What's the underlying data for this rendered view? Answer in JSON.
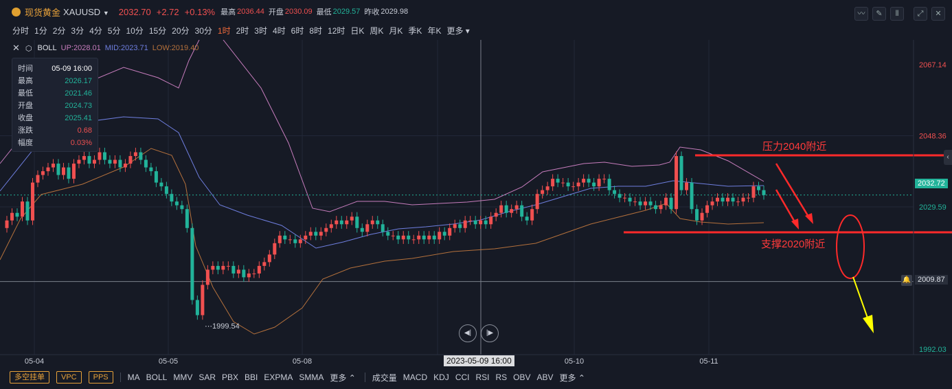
{
  "header": {
    "title": "现货黄金",
    "symbol": "XAUUSD",
    "price": "2032.70",
    "change": "+2.72",
    "change_pct": "+0.13%",
    "high_label": "最高",
    "high": "2036.44",
    "open_label": "开盘",
    "open": "2030.09",
    "low_label": "最低",
    "low": "2029.57",
    "prev_label": "昨收",
    "prev": "2029.98"
  },
  "periods": [
    "分时",
    "1分",
    "2分",
    "3分",
    "4分",
    "5分",
    "10分",
    "15分",
    "20分",
    "30分",
    "1时",
    "2时",
    "3时",
    "4时",
    "6时",
    "8时",
    "12时",
    "日K",
    "周K",
    "月K",
    "季K",
    "年K",
    "更多"
  ],
  "active_period": "1时",
  "indicator": {
    "name": "BOLL",
    "up": "UP:2028.01",
    "mid": "MID:2023.71",
    "low": "LOW:2019.40"
  },
  "tooltip": {
    "time_label": "时间",
    "time": "05-09 16:00",
    "high_label": "最高",
    "high": "2026.17",
    "low_label": "最低",
    "low": "2021.46",
    "open_label": "开盘",
    "open": "2024.73",
    "close_label": "收盘",
    "close": "2025.41",
    "chg_label": "涨跌",
    "chg": "0.68",
    "amp_label": "幅度",
    "amp": "0.03%"
  },
  "y_axis": [
    "2067.14",
    "2048.36",
    "2029.59",
    "2009.87",
    "1992.03"
  ],
  "current_price_tag": "2032.72",
  "crosshair_price_tag": "2009.87",
  "x_axis": [
    "05-04",
    "05-05",
    "05-08",
    "05-09",
    "05-10",
    "05-11"
  ],
  "crosshair_time": "2023-05-09 16:00",
  "min_label": "1999.54",
  "annotations": {
    "resistance": "压力2040附近",
    "support": "支撑2020附近"
  },
  "bottom": {
    "pills": [
      "多空挂单",
      "VPC",
      "PPS"
    ],
    "main_indicators": [
      "MA",
      "BOLL",
      "MMV",
      "SAR",
      "PBX",
      "BBI",
      "EXPMA",
      "SMMA",
      "更多"
    ],
    "sub_indicators": [
      "成交量",
      "MACD",
      "KDJ",
      "CCI",
      "RSI",
      "RS",
      "OBV",
      "ABV",
      "更多"
    ]
  },
  "colors": {
    "bg": "#161a25",
    "up": "#f05050",
    "down": "#22b39a",
    "boll_up": "#c77dbd",
    "boll_mid": "#6f7fe0",
    "boll_low": "#b5713c",
    "annotation": "#ff2a2a",
    "arrow_yellow": "#ffff00"
  },
  "chart_data": {
    "type": "candlestick",
    "x_labels": [
      "05-04",
      "05-05",
      "05-08",
      "05-09",
      "05-10",
      "05-11"
    ],
    "ylim": [
      1992.03,
      2067.14
    ],
    "min_marker": 1999.54,
    "current_price": 2032.72
  }
}
